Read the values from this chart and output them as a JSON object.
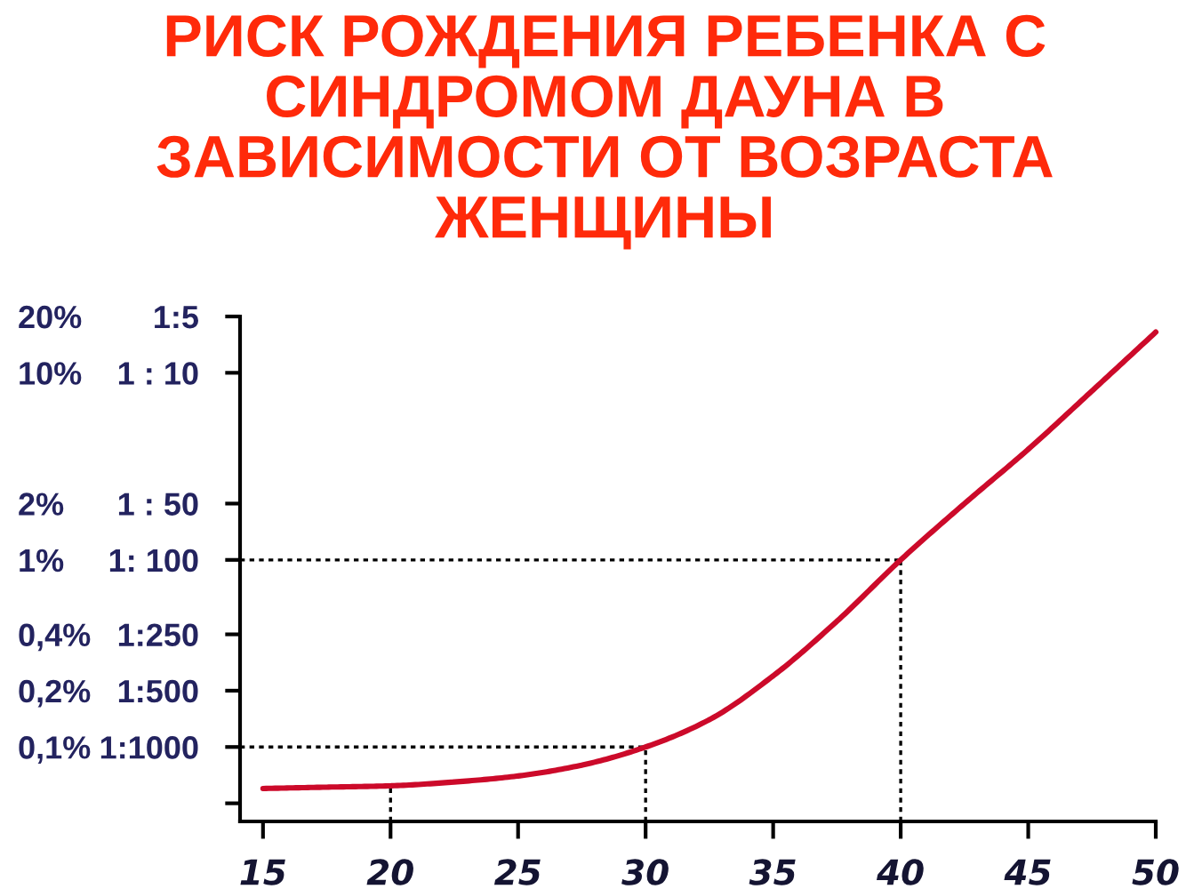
{
  "chart_data": {
    "type": "line",
    "title": "РИСК РОЖДЕНИЯ РЕБЕНКА С\nСИНДРОМОМ ДАУНА В\nЗАВИСИМОСТИ ОТ ВОЗРАСТА\nЖЕНЩИНЫ",
    "x": [
      15,
      17.5,
      20,
      22.5,
      25,
      27.5,
      30,
      32.5,
      35,
      37.5,
      40,
      42.5,
      45,
      47.5,
      50
    ],
    "series": [
      {
        "color": "#cc0a2a",
        "values": [
          0.06,
          0.061,
          0.062,
          0.065,
          0.07,
          0.08,
          0.1,
          0.14,
          0.24,
          0.47,
          1,
          2,
          3.9,
          8,
          16.5
        ]
      },
      {
        "type": "line",
        "x": [
          20,
          20
        ],
        "values": [
          0.04,
          0.062
        ],
        "color": "#000000",
        "line_style": "dotted"
      }
    ],
    "log": "y",
    "xlim": [
      14.1,
      50
    ],
    "xticks": [
      15,
      20,
      25,
      30,
      35,
      40,
      45,
      50
    ],
    "ylim": [
      0.04,
      20
    ],
    "yticks": [
      {
        "value": 0.05,
        "label": null
      },
      {
        "value": 0.1,
        "label": "0,1%"
      },
      {
        "value": 0.2,
        "label": "0,2%"
      },
      {
        "value": 0.4,
        "label": "0,4%"
      },
      {
        "value": 1,
        "label": "1%"
      },
      {
        "value": 2,
        "label": "2%"
      },
      {
        "value": 10,
        "label": "10%"
      },
      {
        "value": 20,
        "label": "20%"
      }
    ],
    "annotations": [
      "1:1000",
      "1:500",
      "1:250",
      "1: 100",
      "1 : 50",
      "1 : 10",
      "1:5"
    ],
    "ref_lines": [
      {
        "axis": "y",
        "value": 1,
        "color": "#000000",
        "line_style": "dotted"
      },
      {
        "axis": "y",
        "value": 0.1,
        "color": "#000000",
        "line_style": "dotted"
      },
      {
        "axis": "x",
        "value": 30,
        "color": "#000000",
        "line_style": "dotted"
      },
      {
        "axis": "x",
        "value": 40,
        "color": "#000000",
        "line_style": "dotted"
      }
    ]
  }
}
